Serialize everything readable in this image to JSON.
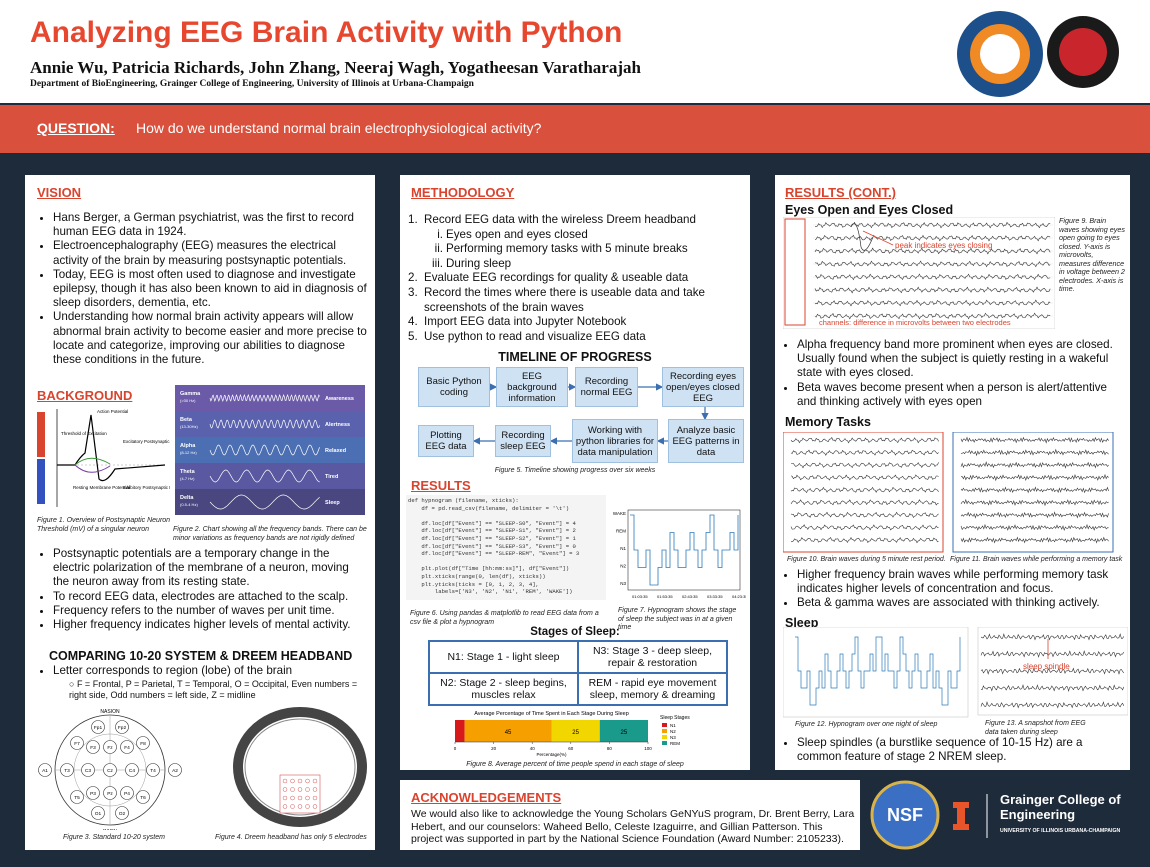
{
  "header": {
    "title": "Analyzing EEG Brain Activity with Python",
    "authors": "Annie Wu, Patricia Richards,  John Zhang, Neeraj Wagh, Yogatheesan Varatharajah",
    "department": "Department of BioEngineering, Grainger College of Engineering, University of Illinois at Urbana-Champaign"
  },
  "question": {
    "label": "QUESTION:",
    "text": "How do we understand normal brain electrophysiological activity?"
  },
  "vision": {
    "heading": "VISION",
    "bullets": [
      "Hans Berger, a German psychiatrist, was the first to record human EEG data in 1924.",
      "Electroencephalography (EEG) measures the electrical activity of the brain by measuring postsynaptic potentials.",
      "Today, EEG is most often used to diagnose and investigate epilepsy, though it has also been known to aid in diagnosis of sleep disorders, dementia, etc.",
      "Understanding how normal brain activity appears will allow abnormal brain activity to become easier and more precise to locate and categorize, improving our abilities to diagnose these conditions in the future."
    ]
  },
  "background": {
    "heading": "BACKGROUND",
    "neuron_labels": [
      "Action Potential",
      "Threshold of Excitation",
      "Excitatory Postsynaptic Potential",
      "Resting Membrane Potential",
      "Inhibitory Postsynaptic Potential"
    ],
    "bands": [
      {
        "name": "Gamma",
        "range": "(>30 Hz)",
        "state": "Awareness"
      },
      {
        "name": "Beta",
        "range": "(13-30Hz)",
        "state": "Alertness"
      },
      {
        "name": "Alpha",
        "range": "(8-12 Hz)",
        "state": "Relaxed"
      },
      {
        "name": "Theta",
        "range": "(4-7 Hz)",
        "state": "Tired"
      },
      {
        "name": "Delta",
        "range": "(0.5-4 Hz)",
        "state": "Sleep"
      }
    ],
    "fig1": "Figure 1. Overview of Postsynaptic Neuron Threshold (mV) of a singular neuron",
    "fig2": "Figure 2. Chart showing all the frequency bands. There can be minor variations as frequency bands are not rigidly defined",
    "bullets": [
      "Postsynaptic potentials are a temporary change in the electric polarization of the membrane of a neuron, moving the neuron away from its resting state.",
      "To record EEG data, electrodes are attached to the scalp.",
      "Frequency refers to the number of waves per unit time.",
      "Higher frequency indicates higher levels of mental activity."
    ]
  },
  "comparing": {
    "heading": "COMPARING 10-20 SYSTEM & DREEM HEADBAND",
    "bullet": "Letter corresponds to region (lobe) of the brain",
    "sub": "F = Frontal, P = Parietal, T = Temporal, O = Occipital, Even numbers = right side, Odd numbers = left side, Z = midline",
    "nasion": "NASION",
    "inion": "INION",
    "electrodes": [
      "Fp1",
      "Fp2",
      "F7",
      "F3",
      "Fz",
      "F4",
      "F8",
      "A1",
      "T3",
      "C3",
      "Cz",
      "C4",
      "T4",
      "A2",
      "T5",
      "P3",
      "Pz",
      "P4",
      "T6",
      "O1",
      "O2"
    ],
    "fig3": "Figure 3. Standard 10-20 system",
    "fig4": "Figure 4. Dreem headband has only 5 electrodes"
  },
  "methodology": {
    "heading": "METHODOLOGY",
    "steps": [
      {
        "text": "Record EEG data with the wireless Dreem headband",
        "sub": [
          "Eyes open and eyes closed",
          "Performing memory tasks with 5 minute breaks",
          "During sleep"
        ]
      },
      {
        "text": "Evaluate EEG recordings for quality & useable data"
      },
      {
        "text": "Record the times where there is useable data and take screenshots of the brain waves"
      },
      {
        "text": "Import EEG data into Jupyter Notebook"
      },
      {
        "text": "Use python to read and visualize EEG data"
      }
    ]
  },
  "timeline": {
    "title": "TIMELINE OF PROGRESS",
    "boxes": [
      "Basic Python coding",
      "EEG background information",
      "Recording normal EEG",
      "Recording eyes open/eyes closed EEG",
      "Analyze basic EEG patterns in data",
      "Working with python libraries for data manipulation",
      "Recording sleep EEG",
      "Plotting EEG data"
    ],
    "caption": "Figure 5. Timeline showing progress over six weeks"
  },
  "results": {
    "heading": "RESULTS",
    "code": [
      "def hypnogram (filename, xticks):",
      "    df = pd.read_csv(filename, delimiter = '\\t')",
      "",
      "    df.loc[df[\"Event\"] == \"SLEEP-S0\", \"Event\"] = 4",
      "    df.loc[df[\"Event\"] == \"SLEEP-S1\", \"Event\"] = 2",
      "    df.loc[df[\"Event\"] == \"SLEEP-S2\", \"Event\"] = 1",
      "    df.loc[df[\"Event\"] == \"SLEEP-S3\", \"Event\"] = 0",
      "    df.loc[df[\"Event\"] == \"SLEEP-REM\", \"Event\"] = 3",
      "",
      "    plt.plot(df[\"Time [hh:mm:ss]\"], df[\"Event\"])",
      "    plt.xticks(range(0, len(df), xticks))",
      "    plt.yticks(ticks = [0, 1, 2, 3, 4],",
      "        labels=['N3', 'N2', 'N1', 'REM', 'WAKE'])"
    ],
    "hypno_levels": [
      "WAKE",
      "REM",
      "N1",
      "N2",
      "N3"
    ],
    "hypno_times": [
      "01:03:35",
      "01:53:35",
      "02:43:35",
      "03:33:35",
      "04:23:35"
    ],
    "fig6": "Figure 6. Using pandas & matplotlib to read EEG data from a csv file & plot a hypnogram",
    "fig7": "Figure 7. Hypnogram shows the stage of sleep the subject was in at a given time"
  },
  "stages": {
    "title": "Stages of Sleep:",
    "cells": [
      "N1: Stage 1 - light sleep",
      "N3: Stage 3 - deep sleep, repair & restoration",
      "N2: Stage 2 - sleep begins, muscles relax",
      "REM - rapid eye movement sleep, memory & dreaming"
    ]
  },
  "sleep_chart": {
    "type": "bar",
    "title": "Average Percentage of Time Spent in Each Stage During Sleep",
    "xlabel": "Percentage(%)",
    "legend_title": "Sleep Stages",
    "series": [
      {
        "name": "N1",
        "color": "#d7191c",
        "values": [
          5
        ]
      },
      {
        "name": "N2",
        "color": "#f5a000",
        "values": [
          45
        ]
      },
      {
        "name": "N3",
        "color": "#f2d600",
        "values": [
          25
        ]
      },
      {
        "name": "REM",
        "color": "#1a9a8a",
        "values": [
          25
        ]
      }
    ],
    "xlim": [
      0,
      100
    ],
    "xticks": [
      0,
      20,
      40,
      60,
      80,
      100
    ],
    "caption": "Figure 8. Average percent of time people spend in each stage of sleep"
  },
  "results_cont": {
    "heading": "RESULTS (CONT.)",
    "eyes": {
      "heading": "Eyes Open and Eyes Closed",
      "annotation1": "peak indicates eyes closing",
      "annotation2": "channels: difference in microvolts between two electrodes",
      "caption": "Figure 9. Brain waves showing eyes open going to eyes closed. Y-axis is microvolts, measures difference in voltage between 2 electrodes. X-axis is time.",
      "bullets": [
        "Alpha frequency band more prominent when eyes are closed. Usually found when the subject is quietly resting in a wakeful state with eyes closed.",
        "Beta waves become present when a person is alert/attentive and thinking actively with eyes open"
      ]
    },
    "memory": {
      "heading": "Memory Tasks",
      "fig10": "Figure 10. Brain waves during 5 minute rest period.",
      "fig11": "Figure 11. Brain waves while performing a memory task",
      "bullets": [
        "Higher frequency brain waves while performing memory task indicates higher levels of concentration and focus.",
        "Beta & gamma waves are associated with thinking actively."
      ]
    },
    "sleep": {
      "heading": "Sleep",
      "annotation": "sleep spindle",
      "fig12": "Figure 12. Hypnogram over one night of sleep",
      "fig13": "Figure 13. A snapshot from EEG data taken during sleep",
      "bullets": [
        "Sleep spindles (a burstlike sequence of 10-15 Hz) are a common feature of stage 2 NREM sleep."
      ]
    }
  },
  "acknowledgements": {
    "heading": "ACKNOWLEDGEMENTS",
    "text": "We would also like to acknowledge the Young Scholars GeNYuS program, Dr. Brent Berry, Lara Hebert, and our counselors: Waheed Bello, Celeste Izaguirre, and Gillian Patterson. This project was supported in part by the National Science Foundation (Award Number: 2105233)."
  },
  "logos": {
    "nsf": "NSF",
    "grainger": "Grainger College of Engineering",
    "illinois": "UNIVERSITY OF ILLINOIS URBANA-CHAMPAIGN"
  }
}
